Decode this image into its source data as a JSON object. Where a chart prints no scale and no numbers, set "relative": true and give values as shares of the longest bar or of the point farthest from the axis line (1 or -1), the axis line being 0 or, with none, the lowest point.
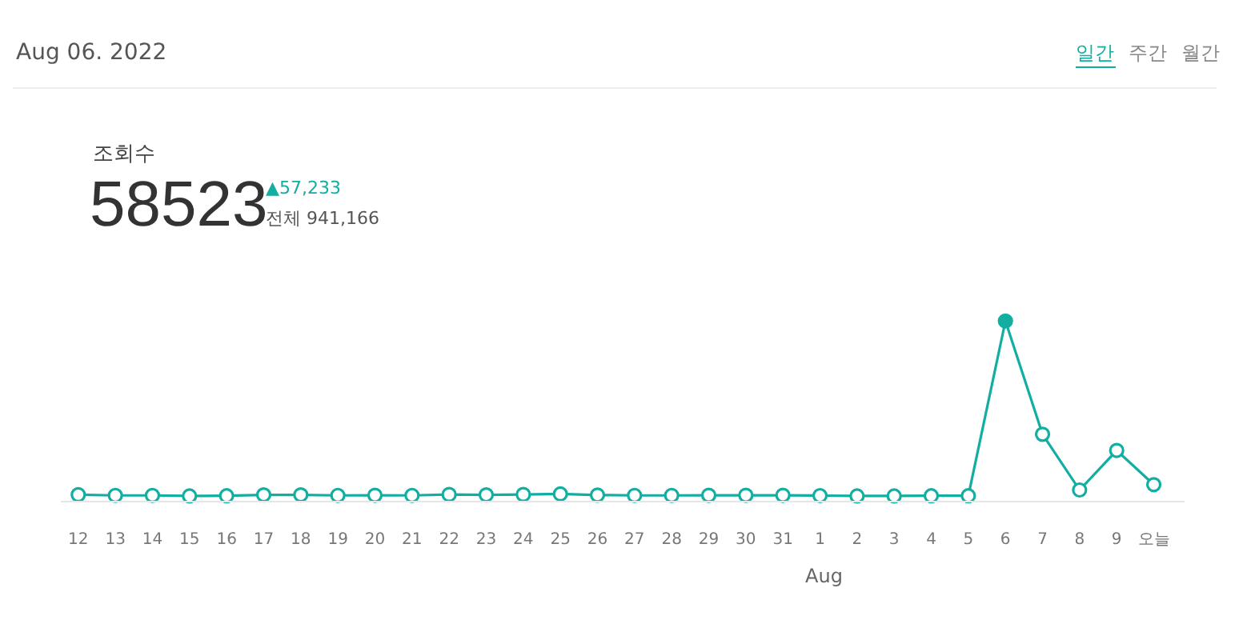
{
  "chart_data": {
    "type": "line",
    "relative": true,
    "title": "Aug 06. 2022",
    "annotations": [
      "일간",
      "주간",
      "월간",
      "조회수",
      "58523",
      "▲57,233",
      "전체 941,166",
      "Aug"
    ],
    "categories": [
      "12",
      "13",
      "14",
      "15",
      "16",
      "17",
      "18",
      "19",
      "20",
      "21",
      "22",
      "23",
      "24",
      "25",
      "26",
      "27",
      "28",
      "29",
      "30",
      "31",
      "1",
      "2",
      "3",
      "4",
      "5",
      "6",
      "7",
      "8",
      "9",
      "오늘"
    ],
    "series": [
      {
        "color": "#12aea2",
        "values": [
          0.034,
          0.03,
          0.03,
          0.027,
          0.028,
          0.033,
          0.033,
          0.03,
          0.031,
          0.03,
          0.035,
          0.033,
          0.035,
          0.038,
          0.032,
          0.03,
          0.03,
          0.031,
          0.031,
          0.031,
          0.029,
          0.027,
          0.027,
          0.028,
          0.028,
          1,
          0.37,
          0.06,
          0.28,
          0.09
        ]
      }
    ],
    "marker": "circle",
    "line_style": "solid"
  }
}
